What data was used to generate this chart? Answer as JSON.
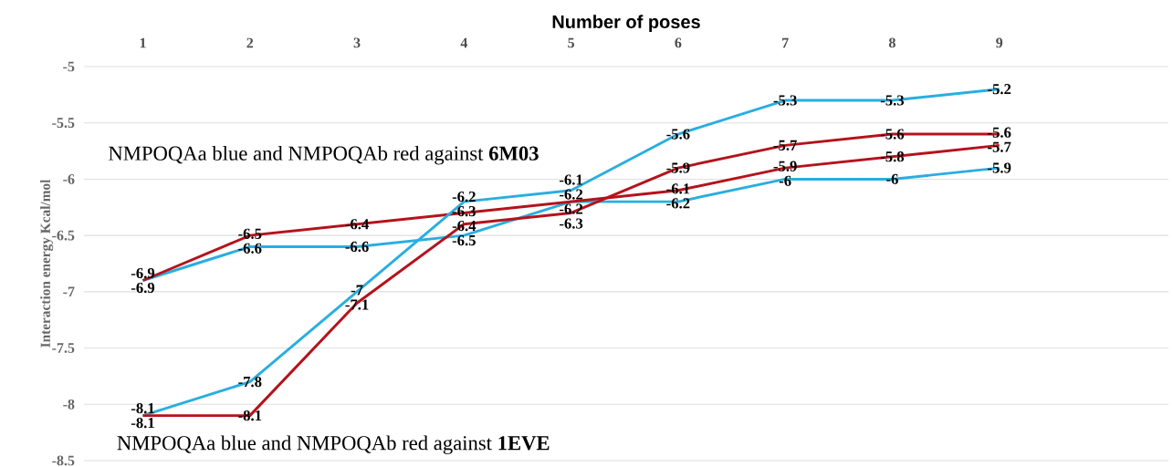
{
  "chart_data": {
    "type": "line",
    "xlabel": "Number of poses",
    "ylabel": "Interaction energy Kcal/mol",
    "categories": [
      "1",
      "2",
      "3",
      "4",
      "5",
      "6",
      "7",
      "8",
      "9"
    ],
    "series": [
      {
        "color": "#29aee0",
        "values": [
          -6.9,
          -6.6,
          -6.6,
          -6.5,
          -6.2,
          -6.2,
          -6,
          -6,
          -5.9
        ]
      },
      {
        "color": "#b5121b",
        "values": [
          -6.9,
          -6.5,
          -6.4,
          -6.3,
          -6.2,
          -6.1,
          -5.9,
          -5.8,
          -5.7
        ]
      },
      {
        "color": "#29aee0",
        "values": [
          -8.1,
          -7.8,
          -7,
          -6.2,
          -6.1,
          -5.6,
          -5.3,
          -5.3,
          -5.2
        ]
      },
      {
        "color": "#b5121b",
        "values": [
          -8.1,
          -8.1,
          -7.1,
          -6.4,
          -6.3,
          -5.9,
          -5.7,
          -5.6,
          -5.6
        ]
      }
    ],
    "ylim": [
      -8.5,
      -5
    ],
    "yticks": [
      -5,
      -5.5,
      -6,
      -6.5,
      -7,
      -7.5,
      -8,
      -8.5
    ],
    "grid": "y",
    "marker": "none",
    "line_style": "solid",
    "data_labels": true,
    "annotations": [
      "NMPOQAa blue and NMPOQAb red against **6M03**",
      "NMPOQAa blue and NMPOQAb red against **1EVE**"
    ]
  }
}
